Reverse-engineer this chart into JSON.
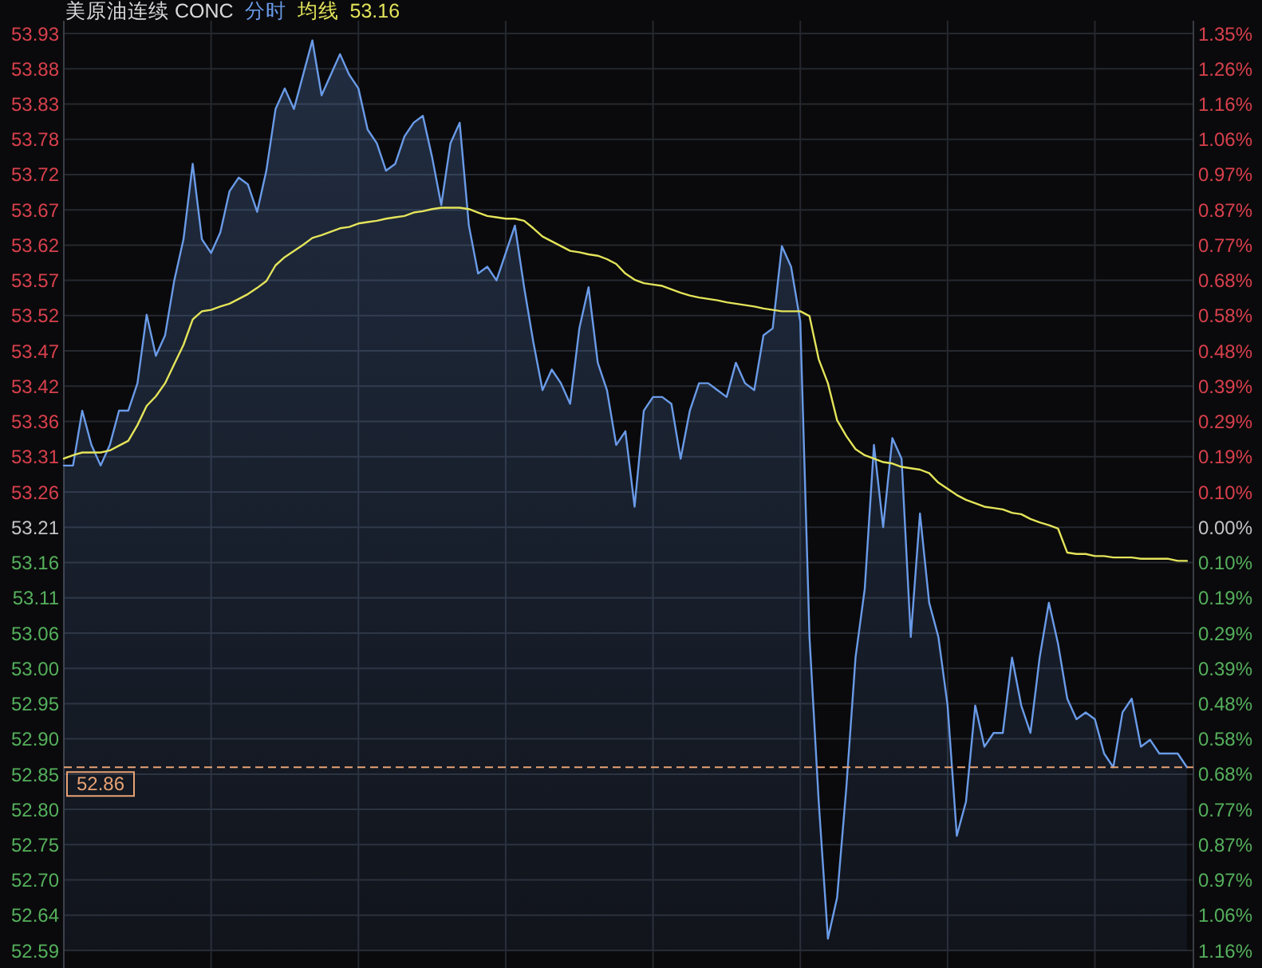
{
  "chart_data": {
    "type": "area",
    "title": "美原油连续 CONC",
    "categories": [
      null,
      null,
      null,
      null,
      null,
      null,
      null,
      null,
      null,
      null,
      null,
      null,
      null,
      null,
      null,
      null,
      null,
      null,
      null,
      null,
      null,
      null,
      null,
      null,
      null,
      null,
      null,
      null,
      null,
      null,
      null,
      null,
      null,
      null,
      null,
      null,
      null,
      null,
      null,
      null,
      null,
      null,
      null,
      null,
      null,
      null,
      null,
      null,
      null,
      null,
      null,
      null,
      null,
      null,
      null,
      null,
      null,
      null,
      null,
      null,
      null,
      null,
      null,
      null,
      null,
      null,
      null,
      null,
      null,
      null,
      null,
      null,
      null,
      null,
      null,
      null,
      null,
      null,
      null,
      null,
      null,
      null,
      null,
      null,
      null,
      null,
      null,
      null,
      null,
      null,
      null,
      null,
      null,
      null,
      null,
      null,
      null,
      null,
      null,
      null,
      null,
      null,
      null,
      null,
      null,
      null,
      null,
      null,
      null,
      null,
      null,
      null,
      null,
      null,
      null,
      null,
      null,
      null,
      null,
      null,
      null,
      null,
      null
    ],
    "series": [
      {
        "name": "分时",
        "color": "#6a9be8",
        "values": [
          53.3,
          53.3,
          53.38,
          53.33,
          53.3,
          53.33,
          53.38,
          53.38,
          53.42,
          53.52,
          53.46,
          53.49,
          53.57,
          53.63,
          53.74,
          53.63,
          53.61,
          53.64,
          53.7,
          53.72,
          53.71,
          53.67,
          53.73,
          53.82,
          53.85,
          53.82,
          53.87,
          53.92,
          53.84,
          53.87,
          53.9,
          53.87,
          53.85,
          53.79,
          53.77,
          53.73,
          53.74,
          53.78,
          53.8,
          53.81,
          53.75,
          53.68,
          53.77,
          53.8,
          53.65,
          53.58,
          53.59,
          53.57,
          53.61,
          53.65,
          53.56,
          53.48,
          53.41,
          53.44,
          53.42,
          53.39,
          53.5,
          53.56,
          53.45,
          53.41,
          53.33,
          53.35,
          53.24,
          53.38,
          53.4,
          53.4,
          53.39,
          53.31,
          53.38,
          53.42,
          53.42,
          53.41,
          53.4,
          53.45,
          53.42,
          53.41,
          53.49,
          53.5,
          53.62,
          53.59,
          53.51,
          53.05,
          52.81,
          52.61,
          52.67,
          52.83,
          53.02,
          53.12,
          53.33,
          53.21,
          53.34,
          53.31,
          53.05,
          53.23,
          53.1,
          53.05,
          52.95,
          52.76,
          52.81,
          52.95,
          52.89,
          52.91,
          52.91,
          53.02,
          52.95,
          52.91,
          53.02,
          53.1,
          53.04,
          52.96,
          52.93,
          52.94,
          52.93,
          52.88,
          52.86,
          52.94,
          52.96,
          52.89,
          52.9,
          52.88,
          52.88,
          52.88,
          52.86
        ]
      },
      {
        "name": "均线",
        "type": "line",
        "color": "#e4e45a",
        "values": [
          53.31,
          53.315,
          53.319,
          53.319,
          53.319,
          53.322,
          53.329,
          53.336,
          53.359,
          53.387,
          53.401,
          53.42,
          53.448,
          53.476,
          53.513,
          53.525,
          53.527,
          53.532,
          53.536,
          53.543,
          53.55,
          53.559,
          53.569,
          53.592,
          53.604,
          53.613,
          53.622,
          53.632,
          53.636,
          53.641,
          53.646,
          53.648,
          53.653,
          53.655,
          53.657,
          53.66,
          53.662,
          53.664,
          53.669,
          53.671,
          53.674,
          53.676,
          53.676,
          53.676,
          53.674,
          53.669,
          53.664,
          53.662,
          53.66,
          53.66,
          53.657,
          53.646,
          53.634,
          53.627,
          53.62,
          53.613,
          53.611,
          53.608,
          53.606,
          53.601,
          53.594,
          53.58,
          53.571,
          53.566,
          53.564,
          53.562,
          53.557,
          53.552,
          53.548,
          53.545,
          53.543,
          53.541,
          53.538,
          53.536,
          53.534,
          53.532,
          53.529,
          53.527,
          53.525,
          53.525,
          53.525,
          53.518,
          53.455,
          53.42,
          53.366,
          53.343,
          53.324,
          53.315,
          53.31,
          53.305,
          53.303,
          53.298,
          53.296,
          53.294,
          53.289,
          53.275,
          53.266,
          53.257,
          53.25,
          53.245,
          53.24,
          53.238,
          53.236,
          53.231,
          53.229,
          53.222,
          53.217,
          53.213,
          53.208,
          53.173,
          53.171,
          53.171,
          53.168,
          53.168,
          53.166,
          53.166,
          53.166,
          53.164,
          53.164,
          53.164,
          53.164,
          53.161,
          53.161
        ]
      }
    ],
    "annotations": [
      "53.16"
    ],
    "ylim": [
      52.5928,
      53.9301
    ],
    "yticks": [
      {
        "value": 53.9301,
        "label": "53.93"
      },
      {
        "value": 53.8787,
        "label": "53.88"
      },
      {
        "value": 53.8272,
        "label": "53.83"
      },
      {
        "value": 53.7758,
        "label": "53.78"
      },
      {
        "value": 53.7244,
        "label": "53.72"
      },
      {
        "value": 53.6729,
        "label": "53.67"
      },
      {
        "value": 53.6215,
        "label": "53.62"
      },
      {
        "value": 53.5701,
        "label": "53.57"
      },
      {
        "value": 53.5186,
        "label": "53.52"
      },
      {
        "value": 53.4672,
        "label": "53.47"
      },
      {
        "value": 53.4157,
        "label": "53.42"
      },
      {
        "value": 53.3643,
        "label": "53.36"
      },
      {
        "value": 53.3129,
        "label": "53.31"
      },
      {
        "value": 53.2614,
        "label": "53.26"
      },
      {
        "value": 53.21,
        "label": "53.21"
      },
      {
        "value": 53.1586,
        "label": "53.16"
      },
      {
        "value": 53.1071,
        "label": "53.11"
      },
      {
        "value": 53.0557,
        "label": "53.06"
      },
      {
        "value": 53.0043,
        "label": "53.00"
      },
      {
        "value": 52.9528,
        "label": "52.95"
      },
      {
        "value": 52.9014,
        "label": "52.90"
      },
      {
        "value": 52.8499,
        "label": "52.85"
      },
      {
        "value": 52.7985,
        "label": "52.80"
      },
      {
        "value": 52.7471,
        "label": "52.75"
      },
      {
        "value": 52.6956,
        "label": "52.70"
      },
      {
        "value": 52.6442,
        "label": "52.64"
      },
      {
        "value": 52.5928,
        "label": "52.59"
      }
    ],
    "y2lim": [
      -1.16,
      1.3533
    ],
    "y2ticks": [
      {
        "value": 1.3533,
        "label": "1.35%"
      },
      {
        "value": 1.2567,
        "label": "1.26%"
      },
      {
        "value": 1.16,
        "label": "1.16%"
      },
      {
        "value": 1.0633,
        "label": "1.06%"
      },
      {
        "value": 0.9667,
        "label": "0.97%"
      },
      {
        "value": 0.87,
        "label": "0.87%"
      },
      {
        "value": 0.7733,
        "label": "0.77%"
      },
      {
        "value": 0.6767,
        "label": "0.68%"
      },
      {
        "value": 0.58,
        "label": "0.58%"
      },
      {
        "value": 0.4833,
        "label": "0.48%"
      },
      {
        "value": 0.3867,
        "label": "0.39%"
      },
      {
        "value": 0.29,
        "label": "0.29%"
      },
      {
        "value": 0.1933,
        "label": "0.19%"
      },
      {
        "value": 0.0967,
        "label": "0.10%"
      },
      {
        "value": 0,
        "label": "0.00%"
      },
      {
        "value": -0.0967,
        "label": "0.10%"
      },
      {
        "value": -0.1933,
        "label": "0.19%"
      },
      {
        "value": -0.29,
        "label": "0.29%"
      },
      {
        "value": -0.3867,
        "label": "0.39%"
      },
      {
        "value": -0.4833,
        "label": "0.48%"
      },
      {
        "value": -0.58,
        "label": "0.58%"
      },
      {
        "value": -0.6767,
        "label": "0.68%"
      },
      {
        "value": -0.7733,
        "label": "0.77%"
      },
      {
        "value": -0.87,
        "label": "0.87%"
      },
      {
        "value": -0.9667,
        "label": "0.97%"
      },
      {
        "value": -1.0633,
        "label": "1.06%"
      },
      {
        "value": -1.16,
        "label": "1.16%"
      }
    ],
    "ref_lines": [
      {
        "axis": "y",
        "value": 52.86,
        "label": "52.86",
        "color": "#e8a274",
        "line_style": "dashed"
      }
    ],
    "grid": true,
    "legend": "top left"
  }
}
